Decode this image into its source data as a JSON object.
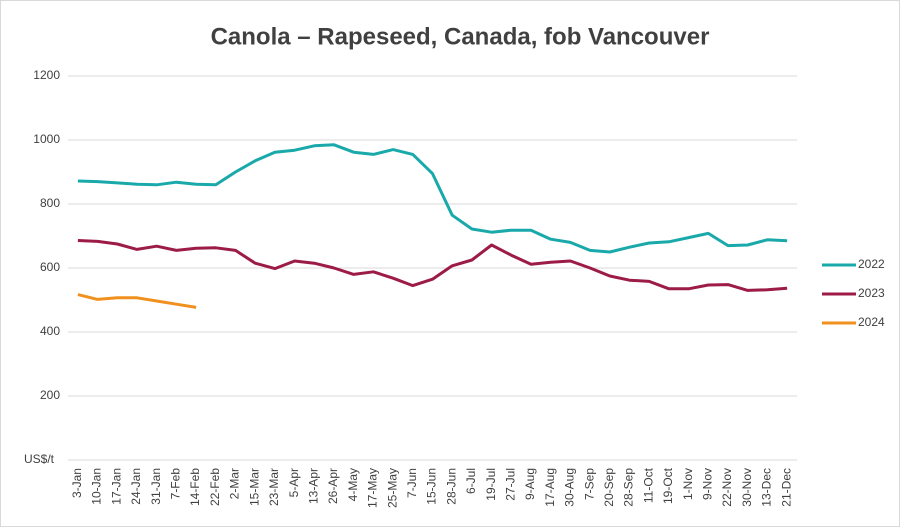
{
  "chart_data": {
    "type": "line",
    "title": "Canola – Rapeseed, Canada, fob Vancouver",
    "y_label": "US$/t",
    "categories": [
      "3-Jan",
      "10-Jan",
      "17-Jan",
      "24-Jan",
      "31-Jan",
      "7-Feb",
      "14-Feb",
      "22-Feb",
      "2-Mar",
      "15-Mar",
      "23-Mar",
      "5-Apr",
      "13-Apr",
      "26-Apr",
      "4-May",
      "17-May",
      "25-May",
      "7-Jun",
      "15-Jun",
      "28-Jun",
      "6-Jul",
      "19-Jul",
      "27-Jul",
      "9-Aug",
      "17-Aug",
      "30-Aug",
      "7-Sep",
      "20-Sep",
      "28-Sep",
      "11-Oct",
      "19-Oct",
      "1-Nov",
      "9-Nov",
      "22-Nov",
      "30-Nov",
      "13-Dec",
      "21-Dec"
    ],
    "series": [
      {
        "name": "2022",
        "color": "#1aa9aa",
        "values": [
          872,
          870,
          866,
          862,
          860,
          868,
          862,
          860,
          900,
          935,
          962,
          968,
          982,
          985,
          962,
          955,
          970,
          955,
          895,
          765,
          722,
          712,
          718,
          718,
          690,
          680,
          655,
          650,
          665,
          678,
          682,
          695,
          708,
          670,
          672,
          688,
          685
        ]
      },
      {
        "name": "2023",
        "color": "#9c1b47",
        "values": [
          686,
          683,
          675,
          658,
          668,
          655,
          662,
          663,
          655,
          615,
          598,
          622,
          615,
          600,
          580,
          588,
          568,
          545,
          565,
          607,
          625,
          672,
          640,
          612,
          618,
          622,
          600,
          575,
          562,
          558,
          535,
          535,
          547,
          548,
          530,
          532,
          537
        ]
      },
      {
        "name": "2024",
        "color": "#f0901e",
        "values": [
          517,
          502,
          507,
          507,
          497,
          487,
          477,
          null,
          null,
          null,
          null,
          null,
          null,
          null,
          null,
          null,
          null,
          null,
          null,
          null,
          null,
          null,
          null,
          null,
          null,
          null,
          null,
          null,
          null,
          null,
          null,
          null,
          null,
          null,
          null,
          null,
          null
        ]
      }
    ],
    "ylim": [
      0,
      1200
    ],
    "yticks": [
      200,
      400,
      600,
      800,
      1000,
      1200
    ],
    "grid": true,
    "legend": "right"
  }
}
